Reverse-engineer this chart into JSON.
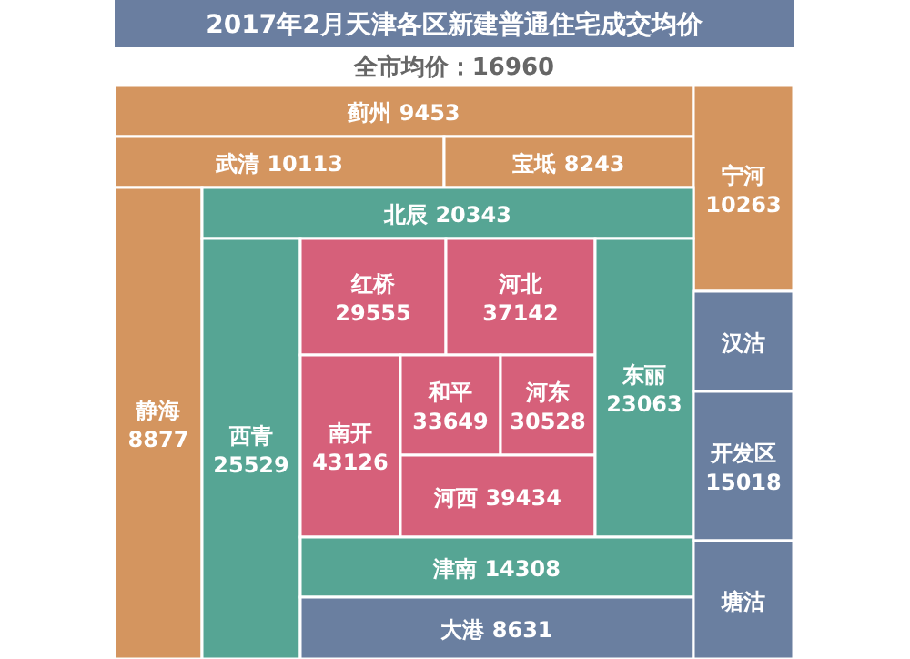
{
  "chart_data": {
    "type": "other",
    "title": "2017年2月天津各区新建普通住宅成交均价",
    "subtitle": "全市均价：16960",
    "data_labels": true,
    "categories": [
      "蓟州",
      "武清",
      "宝坻",
      "宁河",
      "静海",
      "北辰",
      "西青",
      "红桥",
      "河北",
      "南开",
      "和平",
      "河东",
      "河西",
      "东丽",
      "津南",
      "大港",
      "汉沽",
      "开发区",
      "塘沽"
    ],
    "values": [
      9453,
      10113,
      8243,
      10263,
      8877,
      20343,
      25529,
      29555,
      37142,
      43126,
      33649,
      30528,
      39434,
      23063,
      14308,
      8631,
      null,
      15018,
      null
    ],
    "colors": [
      "#d4955f",
      "#d4955f",
      "#d4955f",
      "#d4955f",
      "#d4955f",
      "#56a594",
      "#56a594",
      "#d6607a",
      "#d6607a",
      "#d6607a",
      "#d6607a",
      "#d6607a",
      "#d6607a",
      "#56a594",
      "#56a594",
      "#6a7fa0",
      "#6a7fa0",
      "#6a7fa0",
      "#6a7fa0"
    ]
  }
}
